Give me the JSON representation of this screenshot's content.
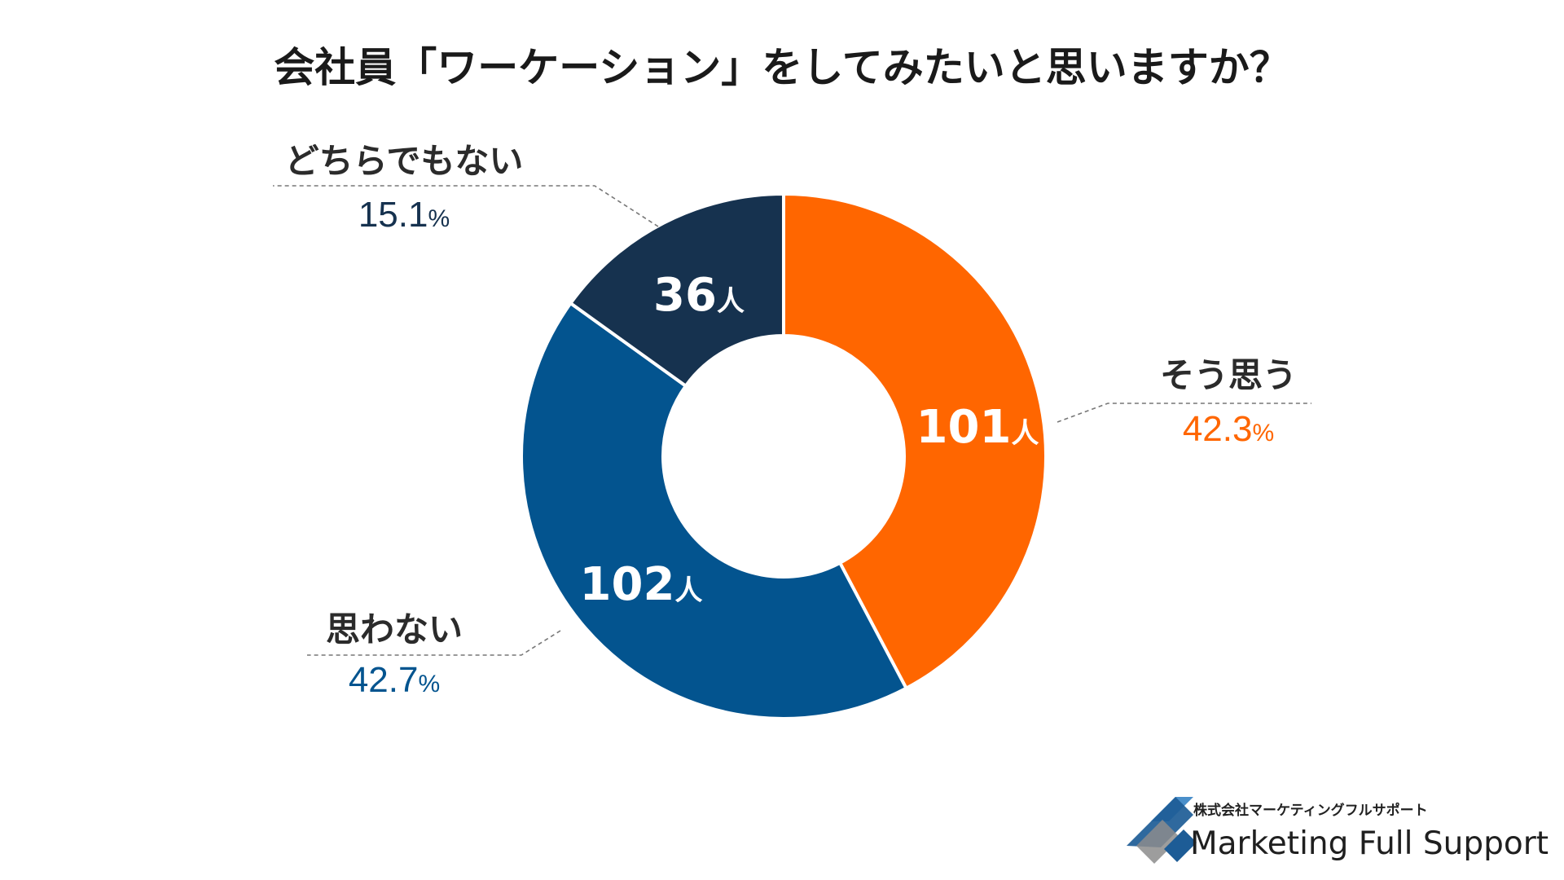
{
  "chart_data": {
    "type": "pie",
    "title": "会社員「ワーケーション」をしてみたいと思いますか？",
    "slices": [
      {
        "label": "そう思う",
        "count": 101,
        "count_unit": "人",
        "percent": 42.3,
        "percent_text": "42.3",
        "color": "#ff6600"
      },
      {
        "label": "思わない",
        "count": 102,
        "count_unit": "人",
        "percent": 42.7,
        "percent_text": "42.7",
        "color": "#03548f"
      },
      {
        "label": "どちらでもない",
        "count": 36,
        "count_unit": "人",
        "percent": 15.1,
        "percent_text": "15.1",
        "color": "#16324f"
      }
    ],
    "percent_symbol": "%",
    "donut": true,
    "start_angle": "12 o'clock",
    "direction": "clockwise"
  },
  "logo": {
    "company_jp": "株式会社マーケティングフルサポート",
    "company_en": "Marketing Full Support",
    "colors": [
      "#1d5c96",
      "#4a8fca",
      "#8c8c8c"
    ]
  }
}
